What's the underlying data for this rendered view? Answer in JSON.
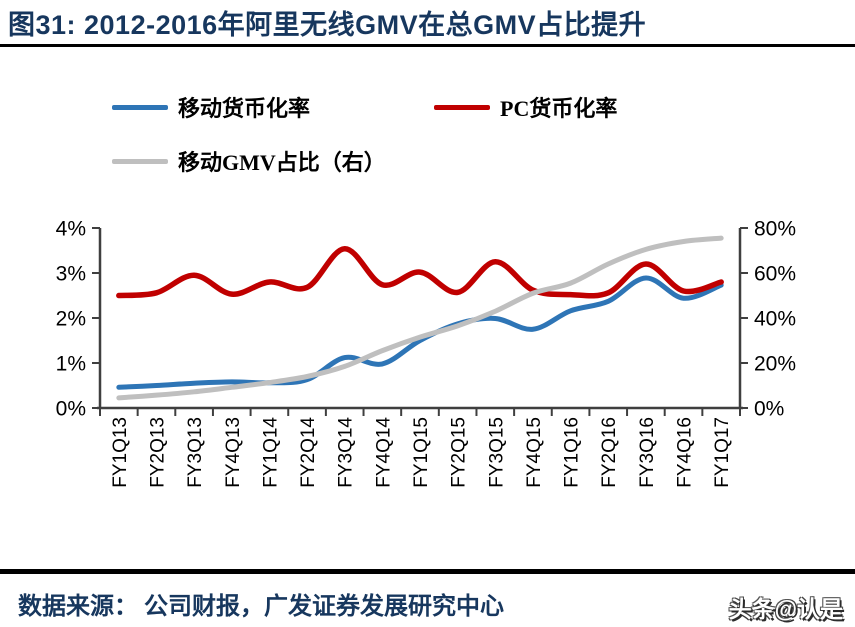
{
  "header": {
    "title": "图31: 2012-2016年阿里无线GMV在总GMV占比提升"
  },
  "legend": [
    {
      "label": "移动货币化率",
      "color": "#2E75B6"
    },
    {
      "label": "PC货币化率",
      "color": "#C00000"
    },
    {
      "label": "移动GMV占比（右）",
      "color": "#BFBFBF"
    }
  ],
  "footer": {
    "source": "数据来源：  公司财报，广发证券发展研究中心",
    "watermark": "头条@认是"
  },
  "chart_data": {
    "type": "line",
    "title": "图31: 2012-2016年阿里无线GMV在总GMV占比提升",
    "categories": [
      "FY1Q13",
      "FY2Q13",
      "FY3Q13",
      "FY4Q13",
      "FY1Q14",
      "FY2Q14",
      "FY3Q14",
      "FY4Q14",
      "FY1Q15",
      "FY2Q15",
      "FY3Q15",
      "FY4Q15",
      "FY1Q16",
      "FY2Q16",
      "FY3Q16",
      "FY4Q16",
      "FY1Q17"
    ],
    "series": [
      {
        "name": "移动货币化率",
        "axis": "left",
        "unit": "%",
        "color": "#2E75B6",
        "stroke_width": 5,
        "values": [
          0.46,
          0.5,
          0.55,
          0.58,
          0.56,
          0.63,
          1.12,
          0.98,
          1.5,
          1.87,
          1.99,
          1.75,
          2.16,
          2.37,
          2.89,
          2.44,
          2.73
        ]
      },
      {
        "name": "PC货币化率",
        "axis": "left",
        "unit": "%",
        "color": "#C00000",
        "stroke_width": 5.5,
        "values": [
          2.5,
          2.56,
          2.95,
          2.53,
          2.8,
          2.68,
          3.54,
          2.74,
          3.02,
          2.57,
          3.25,
          2.62,
          2.52,
          2.56,
          3.2,
          2.6,
          2.8
        ]
      },
      {
        "name": "移动GMV占比（右）",
        "axis": "right",
        "unit": "%",
        "color": "#BFBFBF",
        "stroke_width": 5,
        "values": [
          4.5,
          5.7,
          7.2,
          9.2,
          11.3,
          14.0,
          18.5,
          25.5,
          31.5,
          36.5,
          43.0,
          51.0,
          55.5,
          64.0,
          70.5,
          74.0,
          75.5
        ]
      }
    ],
    "left_axis": {
      "min": 0,
      "max": 4,
      "tick_labels": [
        "0%",
        "1%",
        "2%",
        "3%",
        "4%"
      ]
    },
    "right_axis": {
      "min": 0,
      "max": 80,
      "tick_labels": [
        "0%",
        "20%",
        "40%",
        "60%",
        "80%"
      ]
    },
    "grid": false,
    "legend_position": "top",
    "axis_color": "#3F3F3F",
    "tick_label_color": "#000000"
  }
}
